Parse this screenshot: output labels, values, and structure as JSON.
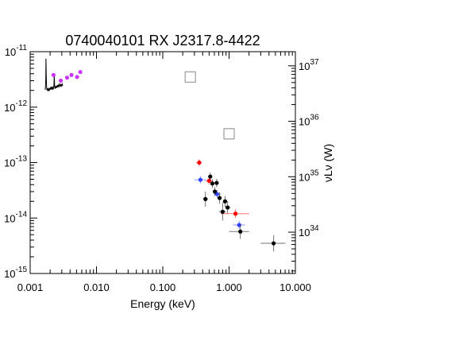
{
  "chart_data": {
    "type": "scatter",
    "title": "0740040101 RX J2317.8-4422",
    "xlabel": "Energy (keV)",
    "ylabel": "",
    "y2label": "νLν (W)",
    "xscale": "log",
    "yscale": "log",
    "xlim": [
      0.001,
      10
    ],
    "ylim": [
      1e-15,
      1e-11
    ],
    "y2lim": [
      1.8e+33,
      1.8e+37
    ],
    "x_ticks": [
      {
        "value": 0.001,
        "label": "0.001"
      },
      {
        "value": 0.01,
        "label": "0.010"
      },
      {
        "value": 0.1,
        "label": "0.100"
      },
      {
        "value": 1,
        "label": "1.000"
      },
      {
        "value": 10,
        "label": "10.000"
      }
    ],
    "y_ticks": [
      {
        "value": 1e-15,
        "base": "10",
        "exp": "-15"
      },
      {
        "value": 1e-14,
        "base": "10",
        "exp": "-14"
      },
      {
        "value": 1e-13,
        "base": "10",
        "exp": "-13"
      },
      {
        "value": 1e-12,
        "base": "10",
        "exp": "-12"
      },
      {
        "value": 1e-11,
        "base": "10",
        "exp": "-11"
      }
    ],
    "y2_ticks": [
      {
        "value": 1e+34,
        "base": "10",
        "exp": "34"
      },
      {
        "value": 1e+35,
        "base": "10",
        "exp": "35"
      },
      {
        "value": 1e+36,
        "base": "10",
        "exp": "36"
      },
      {
        "value": 1e+37,
        "base": "10",
        "exp": "37"
      }
    ],
    "grid": false,
    "legend": "none",
    "series": [
      {
        "color": "#000000",
        "marker": "line",
        "points": [
          [
            0.00168,
            2.05e-12
          ],
          [
            0.0017,
            2.25e-12
          ],
          [
            0.00172,
            3.2e-12
          ],
          [
            0.00173,
            7.5e-12
          ],
          [
            0.00175,
            3.6e-12
          ],
          [
            0.00177,
            2.3e-12
          ],
          [
            0.0018,
            2e-12
          ],
          [
            0.00183,
            2.2e-12
          ],
          [
            0.00186,
            2e-12
          ],
          [
            0.0019,
            2.15e-12
          ],
          [
            0.00193,
            1.95e-12
          ],
          [
            0.00197,
            2.2e-12
          ],
          [
            0.002,
            2.05e-12
          ],
          [
            0.00204,
            2.3e-12
          ],
          [
            0.00208,
            2.1e-12
          ],
          [
            0.00212,
            2.35e-12
          ],
          [
            0.00216,
            2.05e-12
          ],
          [
            0.0022,
            2.25e-12
          ],
          [
            0.00224,
            2.1e-12
          ],
          [
            0.00228,
            2.45e-12
          ],
          [
            0.00231,
            4e-12
          ],
          [
            0.00234,
            2.3e-12
          ],
          [
            0.00238,
            2.15e-12
          ],
          [
            0.00242,
            2.4e-12
          ],
          [
            0.00246,
            2.2e-12
          ],
          [
            0.0025,
            2.45e-12
          ],
          [
            0.00255,
            2.25e-12
          ],
          [
            0.0026,
            2.5e-12
          ],
          [
            0.00265,
            2.3e-12
          ],
          [
            0.0027,
            2.55e-12
          ],
          [
            0.00276,
            2.35e-12
          ],
          [
            0.00282,
            2.6e-12
          ],
          [
            0.00288,
            2.4e-12
          ],
          [
            0.00294,
            2.55e-12
          ],
          [
            0.003,
            2.4e-12
          ],
          [
            0.00305,
            2.6e-12
          ],
          [
            0.0031,
            2.45e-12
          ]
        ]
      },
      {
        "color": "#cc33ff",
        "marker": "dot",
        "points": [
          [
            0.00225,
            3.8e-12
          ],
          [
            0.0029,
            3e-12
          ],
          [
            0.0036,
            3.4e-12
          ],
          [
            0.0042,
            3.8e-12
          ],
          [
            0.0051,
            3.5e-12
          ],
          [
            0.0057,
            4.3e-12
          ]
        ]
      },
      {
        "color": "#888888",
        "marker": "open-square",
        "points": [
          [
            0.26,
            3.5e-12
          ],
          [
            1.0,
            3.3e-13
          ]
        ]
      },
      {
        "color": "#ff0000",
        "marker": "dot",
        "points": [
          {
            "x": 0.355,
            "y": 1e-13,
            "xerr": [
              0.32,
              0.39
            ],
            "yerr": [
              8.6e-14,
              1.15e-13
            ]
          },
          {
            "x": 0.5,
            "y": 4.7e-14,
            "xerr": [
              0.44,
              0.56
            ],
            "yerr": [
              4e-14,
              5.5e-14
            ]
          },
          {
            "x": 1.25,
            "y": 1.2e-14,
            "xerr": [
              0.75,
              2.0
            ],
            "yerr": [
              1e-14,
              1.45e-14
            ]
          }
        ]
      },
      {
        "color": "#3344ff",
        "marker": "dot",
        "points": [
          {
            "x": 0.37,
            "y": 4.9e-14,
            "xerr": [
              0.3,
              0.45
            ],
            "yerr": [
              4.2e-14,
              5.7e-14
            ]
          },
          {
            "x": 0.66,
            "y": 2.7e-14,
            "xerr": [
              0.58,
              0.75
            ],
            "yerr": [
              2.3e-14,
              3.2e-14
            ]
          },
          {
            "x": 1.42,
            "y": 7.5e-15,
            "xerr": [
              1.15,
              1.75
            ],
            "yerr": [
              6.3e-15,
              8.9e-15
            ]
          }
        ]
      },
      {
        "color": "#000000",
        "marker": "dot",
        "points": [
          {
            "x": 0.44,
            "y": 2.2e-14,
            "xerr": [
              0.41,
              0.48
            ],
            "yerr": [
              1.6e-14,
              3e-14
            ]
          },
          {
            "x": 0.52,
            "y": 5.6e-14,
            "xerr": [
              0.49,
              0.55
            ],
            "yerr": [
              4.8e-14,
              6.6e-14
            ]
          },
          {
            "x": 0.56,
            "y": 4.2e-14,
            "xerr": [
              0.53,
              0.59
            ],
            "yerr": [
              3.5e-14,
              5e-14
            ]
          },
          {
            "x": 0.61,
            "y": 3e-14,
            "xerr": [
              0.58,
              0.65
            ],
            "yerr": [
              2.5e-14,
              3.6e-14
            ]
          },
          {
            "x": 0.65,
            "y": 4.3e-14,
            "xerr": [
              0.62,
              0.69
            ],
            "yerr": [
              3.6e-14,
              5.1e-14
            ]
          },
          {
            "x": 0.72,
            "y": 2.3e-14,
            "xerr": [
              0.68,
              0.77
            ],
            "yerr": [
              1.8e-14,
              2.9e-14
            ]
          },
          {
            "x": 0.8,
            "y": 1.3e-14,
            "xerr": [
              0.7,
              0.9
            ],
            "yerr": [
              9e-15,
              1.9e-14
            ]
          },
          {
            "x": 0.87,
            "y": 2e-14,
            "xerr": [
              0.8,
              0.95
            ],
            "yerr": [
              1.6e-14,
              2.5e-14
            ]
          },
          {
            "x": 0.95,
            "y": 1.55e-14,
            "xerr": [
              0.87,
              1.05
            ],
            "yerr": [
              1.2e-14,
              2e-14
            ]
          },
          {
            "x": 1.48,
            "y": 5.7e-15,
            "xerr": [
              1.0,
              2.0
            ],
            "yerr": [
              4.2e-15,
              7.7e-15
            ]
          },
          {
            "x": 4.7,
            "y": 3.5e-15,
            "xerr": [
              3.0,
              7.1
            ],
            "yerr": [
              2.5e-15,
              4.9e-15
            ]
          }
        ]
      }
    ]
  }
}
